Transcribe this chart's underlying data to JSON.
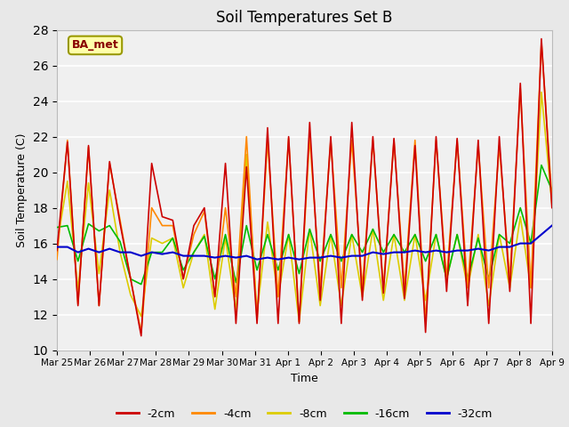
{
  "title": "Soil Temperatures Set B",
  "xlabel": "Time",
  "ylabel": "Soil Temperature (C)",
  "ylim": [
    10,
    28
  ],
  "yticks": [
    10,
    12,
    14,
    16,
    18,
    20,
    22,
    24,
    26,
    28
  ],
  "background_color": "#e8e8e8",
  "plot_bg_color": "#f0f0f0",
  "legend_label": "BA_met",
  "series": {
    "-2cm": {
      "color": "#cc0000",
      "lw": 1.2
    },
    "-4cm": {
      "color": "#ff8800",
      "lw": 1.2
    },
    "-8cm": {
      "color": "#ddcc00",
      "lw": 1.2
    },
    "-16cm": {
      "color": "#00bb00",
      "lw": 1.2
    },
    "-32cm": {
      "color": "#0000cc",
      "lw": 1.5
    }
  },
  "xtick_labels": [
    "Mar 25",
    "Mar 26",
    "Mar 27",
    "Mar 28",
    "Mar 29",
    "Mar 30",
    "Mar 31",
    "Apr 1",
    "Apr 2",
    "Apr 3",
    "Apr 4",
    "Apr 5",
    "Apr 6",
    "Apr 7",
    "Apr 8",
    "Apr 9"
  ],
  "t2cm": [
    15.6,
    21.7,
    12.5,
    21.5,
    12.5,
    20.6,
    17.1,
    14.0,
    10.8,
    20.5,
    17.5,
    17.3,
    14.0,
    17.0,
    18.0,
    13.0,
    20.5,
    11.5,
    20.3,
    11.5,
    22.5,
    11.5,
    22.0,
    11.5,
    22.8,
    12.8,
    22.0,
    11.5,
    22.8,
    12.8,
    22.0,
    13.2,
    21.9,
    12.9,
    21.5,
    11.0,
    22.0,
    13.3,
    21.9,
    12.5,
    21.8,
    11.5,
    22.0,
    13.3,
    25.0,
    11.5,
    27.5,
    18.0
  ],
  "t4cm": [
    15.1,
    21.8,
    12.6,
    21.4,
    12.5,
    20.5,
    17.3,
    14.0,
    11.0,
    18.0,
    17.0,
    17.0,
    14.0,
    16.5,
    17.8,
    13.0,
    18.0,
    13.0,
    22.0,
    11.7,
    21.8,
    13.0,
    21.9,
    11.6,
    22.0,
    13.5,
    21.8,
    13.5,
    21.8,
    13.5,
    21.8,
    13.5,
    21.8,
    13.5,
    21.8,
    11.6,
    21.8,
    14.0,
    21.8,
    13.5,
    21.5,
    13.5,
    21.5,
    14.0,
    24.7,
    13.5,
    27.3,
    18.5
  ],
  "t8cm": [
    15.9,
    19.5,
    13.4,
    19.4,
    14.3,
    19.0,
    15.5,
    13.1,
    11.9,
    16.3,
    16.0,
    16.3,
    13.5,
    15.5,
    16.5,
    12.3,
    16.3,
    12.2,
    21.0,
    12.1,
    17.2,
    13.0,
    16.5,
    11.6,
    16.8,
    12.5,
    16.5,
    12.5,
    16.5,
    13.0,
    16.8,
    12.8,
    16.5,
    12.8,
    16.5,
    12.8,
    16.5,
    14.0,
    16.5,
    13.5,
    16.5,
    12.5,
    16.5,
    13.5,
    17.5,
    13.5,
    24.5,
    18.2
  ],
  "t16cm": [
    16.9,
    17.0,
    15.0,
    17.1,
    16.7,
    17.0,
    16.1,
    14.0,
    13.7,
    15.5,
    15.5,
    16.3,
    14.5,
    15.5,
    16.4,
    14.0,
    16.5,
    13.8,
    17.0,
    14.5,
    16.5,
    14.5,
    16.5,
    14.3,
    16.8,
    15.0,
    16.5,
    15.0,
    16.5,
    15.5,
    16.8,
    15.5,
    16.5,
    15.5,
    16.5,
    15.0,
    16.5,
    14.0,
    16.5,
    14.0,
    16.3,
    14.0,
    16.5,
    16.0,
    18.0,
    16.0,
    20.4,
    19.0
  ],
  "t32cm": [
    15.8,
    15.8,
    15.5,
    15.7,
    15.5,
    15.7,
    15.5,
    15.5,
    15.3,
    15.5,
    15.4,
    15.5,
    15.3,
    15.3,
    15.3,
    15.2,
    15.3,
    15.2,
    15.3,
    15.1,
    15.2,
    15.1,
    15.2,
    15.1,
    15.2,
    15.2,
    15.3,
    15.2,
    15.3,
    15.3,
    15.5,
    15.4,
    15.5,
    15.5,
    15.6,
    15.5,
    15.6,
    15.5,
    15.6,
    15.6,
    15.7,
    15.6,
    15.8,
    15.8,
    16.0,
    16.0,
    16.5,
    17.0
  ]
}
